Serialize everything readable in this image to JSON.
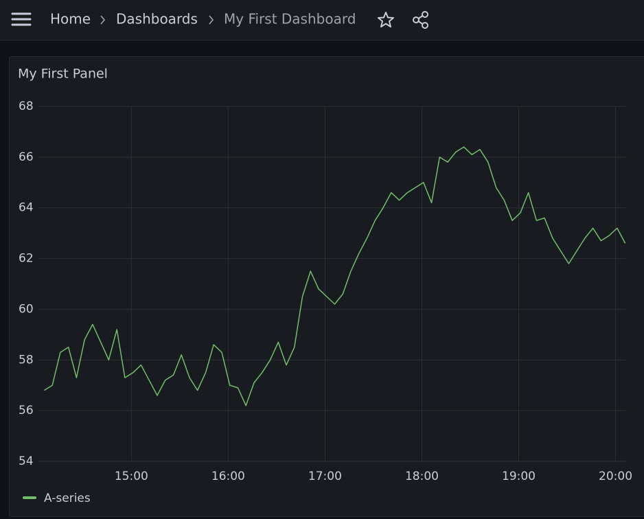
{
  "header": {
    "breadcrumbs": [
      "Home",
      "Dashboards",
      "My First Dashboard"
    ]
  },
  "chart_data": {
    "type": "line",
    "title": "My First Panel",
    "x": [
      "14:06",
      "14:11",
      "14:16",
      "14:21",
      "14:26",
      "14:31",
      "14:36",
      "14:41",
      "14:46",
      "14:51",
      "14:56",
      "15:01",
      "15:06",
      "15:11",
      "15:16",
      "15:21",
      "15:26",
      "15:31",
      "15:36",
      "15:41",
      "15:46",
      "15:51",
      "15:56",
      "16:01",
      "16:06",
      "16:11",
      "16:16",
      "16:21",
      "16:26",
      "16:31",
      "16:36",
      "16:41",
      "16:46",
      "16:51",
      "16:56",
      "17:01",
      "17:06",
      "17:11",
      "17:16",
      "17:21",
      "17:26",
      "17:31",
      "17:36",
      "17:41",
      "17:46",
      "17:51",
      "17:56",
      "18:01",
      "18:06",
      "18:11",
      "18:16",
      "18:21",
      "18:26",
      "18:31",
      "18:36",
      "18:41",
      "18:46",
      "18:51",
      "18:56",
      "19:01",
      "19:06",
      "19:11",
      "19:16",
      "19:21",
      "19:26",
      "19:31",
      "19:36",
      "19:41",
      "19:46",
      "19:51",
      "19:56",
      "20:01",
      "20:06"
    ],
    "series": [
      {
        "name": "A-series",
        "color": "#73bf69",
        "values": [
          56.8,
          57.0,
          58.3,
          58.5,
          57.3,
          58.8,
          59.4,
          58.7,
          58.0,
          59.2,
          57.3,
          57.5,
          57.8,
          57.2,
          56.6,
          57.2,
          57.4,
          58.2,
          57.3,
          56.8,
          57.5,
          58.6,
          58.3,
          57.0,
          56.9,
          56.2,
          57.1,
          57.5,
          58.0,
          58.7,
          57.8,
          58.5,
          60.5,
          61.5,
          60.8,
          60.5,
          60.2,
          60.6,
          61.5,
          62.2,
          62.8,
          63.5,
          64.0,
          64.6,
          64.3,
          64.6,
          64.8,
          65.0,
          64.2,
          66.0,
          65.8,
          66.2,
          66.4,
          66.1,
          66.3,
          65.8,
          64.8,
          64.3,
          63.5,
          63.8,
          64.6,
          63.5,
          63.6,
          62.8,
          62.3,
          61.8,
          62.3,
          62.8,
          63.2,
          62.7,
          62.9,
          63.2,
          62.6
        ]
      }
    ],
    "xlim": [
      "14:02",
      "20:07"
    ],
    "xticks": [
      "15:00",
      "16:00",
      "17:00",
      "18:00",
      "19:00",
      "20:00"
    ],
    "ylim": [
      54,
      68
    ],
    "yticks": [
      54,
      56,
      58,
      60,
      62,
      64,
      66,
      68
    ],
    "grid": true
  }
}
